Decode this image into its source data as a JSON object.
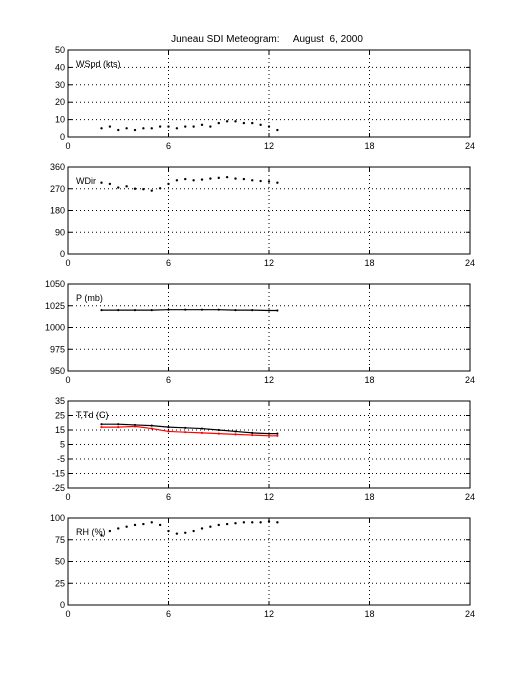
{
  "title": "Juneau SDI Meteogram:     August  6, 2000",
  "chart_data": [
    {
      "type": "scatter",
      "label": "WSpd (kts)",
      "xlim": [
        0,
        24
      ],
      "xticks": [
        0,
        6,
        12,
        18,
        24
      ],
      "ylim": [
        0,
        50
      ],
      "yticks": [
        0,
        10,
        20,
        30,
        40,
        50
      ],
      "grid": true,
      "series": [
        {
          "color": "#000000",
          "x": [
            2.0,
            2.5,
            3.0,
            3.5,
            4.0,
            4.5,
            5.0,
            5.5,
            6.0,
            6.5,
            7.0,
            7.5,
            8.0,
            8.5,
            9.0,
            9.5,
            10.0,
            10.5,
            11.0,
            11.5,
            12.0,
            12.5
          ],
          "y": [
            5,
            6,
            4,
            5,
            4,
            5,
            5,
            6,
            6,
            5,
            6,
            6,
            7,
            6,
            8,
            9,
            9,
            8,
            8,
            7,
            6,
            4
          ]
        }
      ]
    },
    {
      "type": "scatter",
      "label": "WDir",
      "xlim": [
        0,
        24
      ],
      "xticks": [
        0,
        6,
        12,
        18,
        24
      ],
      "ylim": [
        0,
        360
      ],
      "yticks": [
        0,
        90,
        180,
        270,
        360
      ],
      "grid": true,
      "series": [
        {
          "color": "#000000",
          "x": [
            2.0,
            2.5,
            3.0,
            3.5,
            4.0,
            4.5,
            5.0,
            5.5,
            6.0,
            6.5,
            7.0,
            7.5,
            8.0,
            8.5,
            9.0,
            9.5,
            10.0,
            10.5,
            11.0,
            11.5,
            12.0,
            12.5
          ],
          "y": [
            295,
            290,
            275,
            280,
            270,
            268,
            262,
            272,
            290,
            305,
            310,
            305,
            308,
            312,
            315,
            318,
            312,
            310,
            305,
            302,
            300,
            295
          ]
        }
      ]
    },
    {
      "type": "line",
      "label": "P (mb)",
      "xlim": [
        0,
        24
      ],
      "xticks": [
        0,
        6,
        12,
        18,
        24
      ],
      "ylim": [
        950,
        1050
      ],
      "yticks": [
        950,
        975,
        1000,
        1025,
        1050
      ],
      "grid": true,
      "series": [
        {
          "color": "#000000",
          "x": [
            2.0,
            3.0,
            4.0,
            5.0,
            6.0,
            7.0,
            8.0,
            9.0,
            10.0,
            11.0,
            12.0,
            12.5
          ],
          "y": [
            1020,
            1020,
            1020,
            1020,
            1020.5,
            1020.5,
            1020.5,
            1020.5,
            1020,
            1020,
            1019.5,
            1019.5
          ]
        }
      ]
    },
    {
      "type": "line",
      "label": "T,Td (C)",
      "xlim": [
        0,
        24
      ],
      "xticks": [
        0,
        6,
        12,
        18,
        24
      ],
      "ylim": [
        -25,
        35
      ],
      "yticks": [
        -25,
        -15,
        -5,
        5,
        15,
        25,
        35
      ],
      "grid": true,
      "series": [
        {
          "color": "#000000",
          "x": [
            2.0,
            3.0,
            4.0,
            5.0,
            6.0,
            7.0,
            8.0,
            9.0,
            10.0,
            11.0,
            12.0,
            12.5
          ],
          "y": [
            19,
            19,
            18.5,
            18,
            17,
            16.5,
            16,
            15,
            14,
            13,
            12.5,
            12.5
          ]
        },
        {
          "color": "#ff0000",
          "x": [
            2.0,
            3.0,
            4.0,
            5.0,
            6.0,
            7.0,
            8.0,
            9.0,
            10.0,
            11.0,
            12.0,
            12.5
          ],
          "y": [
            17,
            17,
            17.5,
            16,
            14,
            13.5,
            13,
            12.5,
            12,
            11.5,
            11,
            11
          ]
        }
      ]
    },
    {
      "type": "scatter",
      "label": "RH (%)",
      "xlim": [
        0,
        24
      ],
      "xticks": [
        0,
        6,
        12,
        18,
        24
      ],
      "ylim": [
        0,
        100
      ],
      "yticks": [
        0,
        25,
        50,
        75,
        100
      ],
      "grid": true,
      "series": [
        {
          "color": "#000000",
          "x": [
            2.0,
            2.5,
            3.0,
            3.5,
            4.0,
            4.5,
            5.0,
            5.5,
            6.0,
            6.5,
            7.0,
            7.5,
            8.0,
            8.5,
            9.0,
            9.5,
            10.0,
            10.5,
            11.0,
            11.5,
            12.0,
            12.5
          ],
          "y": [
            80,
            85,
            88,
            90,
            92,
            93,
            95,
            92,
            85,
            82,
            83,
            85,
            88,
            90,
            92,
            93,
            94,
            95,
            95,
            95,
            96,
            95
          ]
        }
      ]
    }
  ]
}
